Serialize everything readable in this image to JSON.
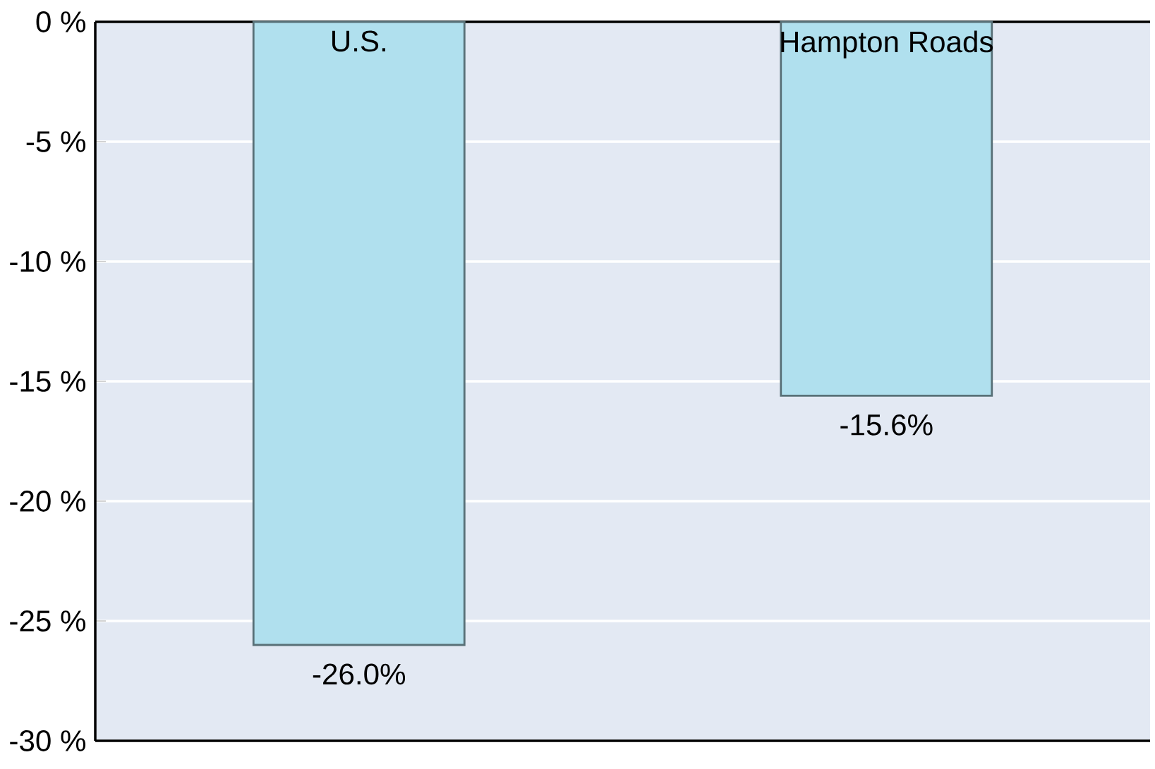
{
  "chart_data": {
    "type": "bar",
    "categories": [
      "U.S.",
      "Hampton Roads"
    ],
    "values": [
      -26.0,
      -15.6
    ],
    "value_labels": [
      "-26.0%",
      "-15.6%"
    ],
    "color": "#b0e0ee",
    "ylim": [
      -30,
      0
    ],
    "yticks": [
      {
        "value": 0,
        "label": "0 %"
      },
      {
        "value": -5,
        "label": "-5 %"
      },
      {
        "value": -10,
        "label": "-10 %"
      },
      {
        "value": -15,
        "label": "-15 %"
      },
      {
        "value": -20,
        "label": "-20 %"
      },
      {
        "value": -25,
        "label": "-25 %"
      },
      {
        "value": -30,
        "label": "-30 %"
      }
    ],
    "grid": "y"
  }
}
